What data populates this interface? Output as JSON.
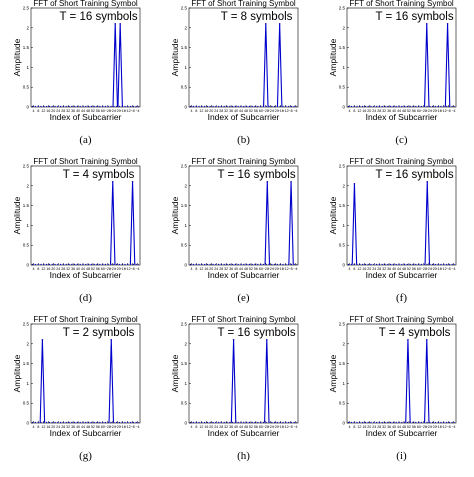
{
  "chart_data": [
    {
      "type": "line",
      "panel_id": "a",
      "caption": "(a)",
      "title": "FFT of Short Training Symbol",
      "annotation": "T = 16 symbols",
      "xlabel": "Index of Subcarrier",
      "ylabel": "Amplitude",
      "xticks": [
        "4",
        "8",
        "12",
        "16",
        "20",
        "24",
        "28",
        "32",
        "36",
        "40",
        "44",
        "48",
        "52",
        "56",
        "60",
        "−28",
        "−24",
        "−20",
        "−16",
        "−12",
        "−8",
        "−4"
      ],
      "yticks": [
        "0",
        "0.5",
        "1",
        "1.5",
        "2",
        "2.5"
      ],
      "ylim": [
        0,
        2.5
      ],
      "line_color": "#0000cc",
      "peaks": [
        {
          "tick_index": 16.5,
          "value": 2.1
        },
        {
          "tick_index": 17.5,
          "value": 2.1
        }
      ]
    },
    {
      "type": "line",
      "panel_id": "b",
      "caption": "(b)",
      "title": "FFT of Short Training Symbol",
      "annotation": "T = 8 symbols",
      "xlabel": "Index of Subcarrier",
      "ylabel": "Amplitude",
      "xticks": [
        "4",
        "8",
        "12",
        "16",
        "20",
        "24",
        "28",
        "32",
        "36",
        "40",
        "44",
        "48",
        "52",
        "56",
        "60",
        "−28",
        "−24",
        "−20",
        "−16",
        "−12",
        "−8",
        "−4"
      ],
      "yticks": [
        "0",
        "0.5",
        "1",
        "1.5",
        "2",
        "2.5"
      ],
      "ylim": [
        0,
        2.5
      ],
      "line_color": "#0000cc",
      "peaks": [
        {
          "tick_index": 15.0,
          "value": 2.1
        },
        {
          "tick_index": 17.8,
          "value": 2.1
        }
      ]
    },
    {
      "type": "line",
      "panel_id": "c",
      "caption": "(c)",
      "title": "FFT of Short Training Symbol",
      "annotation": "T = 16 symbols",
      "xlabel": "Index of Subcarrier",
      "ylabel": "Amplitude",
      "xticks": [
        "4",
        "8",
        "12",
        "16",
        "20",
        "24",
        "28",
        "32",
        "36",
        "40",
        "44",
        "48",
        "52",
        "56",
        "60",
        "−28",
        "−24",
        "−20",
        "−16",
        "−12",
        "−8",
        "−4"
      ],
      "yticks": [
        "0",
        "0.5",
        "1",
        "1.5",
        "2",
        "2.5"
      ],
      "ylim": [
        0,
        2.5
      ],
      "line_color": "#0000cc",
      "peaks": [
        {
          "tick_index": 15.6,
          "value": 2.1
        },
        {
          "tick_index": 19.8,
          "value": 2.1
        }
      ]
    },
    {
      "type": "line",
      "panel_id": "d",
      "caption": "(d)",
      "title": "FFT of Short Training Symbol",
      "annotation": "T = 4 symbols",
      "xlabel": "Index of Subcarrier",
      "ylabel": "Amplitude",
      "xticks": [
        "4",
        "8",
        "12",
        "16",
        "20",
        "24",
        "28",
        "32",
        "36",
        "40",
        "44",
        "48",
        "52",
        "56",
        "60",
        "−28",
        "−24",
        "−20",
        "−16",
        "−12",
        "−8",
        "−4"
      ],
      "yticks": [
        "0",
        "0.5",
        "1",
        "1.5",
        "2",
        "2.5"
      ],
      "ylim": [
        0,
        2.5
      ],
      "line_color": "#0000cc",
      "peaks": [
        {
          "tick_index": 16.0,
          "value": 2.1
        },
        {
          "tick_index": 20.0,
          "value": 2.1
        }
      ]
    },
    {
      "type": "line",
      "panel_id": "e",
      "caption": "(e)",
      "title": "FFT of Short Training Symbol",
      "annotation": "T = 16 symbols",
      "xlabel": "Index of Subcarrier",
      "ylabel": "Amplitude",
      "xticks": [
        "4",
        "8",
        "12",
        "16",
        "20",
        "24",
        "28",
        "32",
        "36",
        "40",
        "44",
        "48",
        "52",
        "56",
        "60",
        "−28",
        "−24",
        "−20",
        "−16",
        "−12",
        "−8",
        "−4"
      ],
      "yticks": [
        "0",
        "0.5",
        "1",
        "1.5",
        "2",
        "2.5"
      ],
      "ylim": [
        0,
        2.5
      ],
      "line_color": "#0000cc",
      "peaks": [
        {
          "tick_index": 15.3,
          "value": 2.1
        },
        {
          "tick_index": 20.1,
          "value": 2.1
        }
      ]
    },
    {
      "type": "line",
      "panel_id": "f",
      "caption": "(f)",
      "title": "FFT of Short Training Symbol",
      "annotation": "T = 16 symbols",
      "xlabel": "Index of Subcarrier",
      "ylabel": "Amplitude",
      "xticks": [
        "4",
        "8",
        "12",
        "16",
        "20",
        "24",
        "28",
        "32",
        "36",
        "40",
        "44",
        "48",
        "52",
        "56",
        "60",
        "−28",
        "−24",
        "−20",
        "−16",
        "−12",
        "−8",
        "−4"
      ],
      "yticks": [
        "0",
        "0.5",
        "1",
        "1.5",
        "2",
        "2.5"
      ],
      "ylim": [
        0,
        2.5
      ],
      "line_color": "#0000cc",
      "peaks": [
        {
          "tick_index": 1.0,
          "value": 2.05
        },
        {
          "tick_index": 15.7,
          "value": 2.1
        }
      ]
    },
    {
      "type": "line",
      "panel_id": "g",
      "caption": "(g)",
      "title": "FFT of Short Training Symbol",
      "annotation": "T = 2 symbols",
      "xlabel": "Index of Subcarrier",
      "ylabel": "Amplitude",
      "xticks": [
        "4",
        "8",
        "12",
        "16",
        "20",
        "24",
        "28",
        "32",
        "36",
        "40",
        "44",
        "48",
        "52",
        "56",
        "60",
        "−28",
        "−24",
        "−20",
        "−16",
        "−12",
        "−8",
        "−4"
      ],
      "yticks": [
        "0",
        "0.5",
        "1",
        "1.5",
        "2",
        "2.5"
      ],
      "ylim": [
        0,
        2.5
      ],
      "line_color": "#0000cc",
      "peaks": [
        {
          "tick_index": 1.8,
          "value": 2.1
        },
        {
          "tick_index": 15.7,
          "value": 2.1
        }
      ]
    },
    {
      "type": "line",
      "panel_id": "h",
      "caption": "(h)",
      "title": "FFT of Short Training Symbol",
      "annotation": "T = 16 symbols",
      "xlabel": "Index of Subcarrier",
      "ylabel": "Amplitude",
      "xticks": [
        "4",
        "8",
        "12",
        "16",
        "20",
        "24",
        "28",
        "32",
        "36",
        "40",
        "44",
        "48",
        "52",
        "56",
        "60",
        "−28",
        "−24",
        "−20",
        "−16",
        "−12",
        "−8",
        "−4"
      ],
      "yticks": [
        "0",
        "0.5",
        "1",
        "1.5",
        "2",
        "2.5"
      ],
      "ylim": [
        0,
        2.5
      ],
      "line_color": "#0000cc",
      "peaks": [
        {
          "tick_index": 8.5,
          "value": 2.1
        },
        {
          "tick_index": 15.2,
          "value": 2.1
        }
      ]
    },
    {
      "type": "line",
      "panel_id": "i",
      "caption": "(i)",
      "title": "FFT of Short Training Symbol",
      "annotation": "T = 4 symbols",
      "xlabel": "Index of Subcarrier",
      "ylabel": "Amplitude",
      "xticks": [
        "4",
        "8",
        "12",
        "16",
        "20",
        "24",
        "28",
        "32",
        "36",
        "40",
        "44",
        "48",
        "52",
        "56",
        "60",
        "−28",
        "−24",
        "−20",
        "−16",
        "−12",
        "−8",
        "−4"
      ],
      "yticks": [
        "0",
        "0.5",
        "1",
        "1.5",
        "2",
        "2.5"
      ],
      "ylim": [
        0,
        2.5
      ],
      "line_color": "#0000cc",
      "peaks": [
        {
          "tick_index": 11.8,
          "value": 2.1
        },
        {
          "tick_index": 15.6,
          "value": 2.1
        }
      ]
    }
  ]
}
